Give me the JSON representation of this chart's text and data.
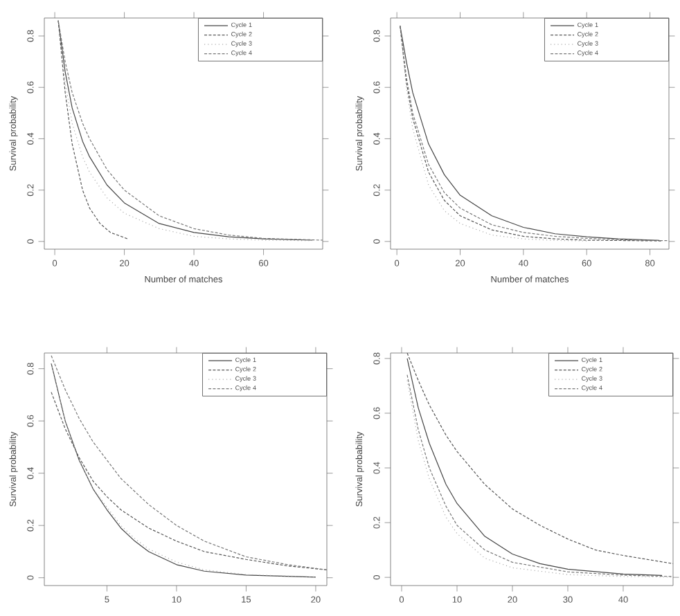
{
  "chart_data": [
    {
      "type": "line",
      "xlabel": "Number of matches",
      "ylabel": "Survival probability",
      "xlim": [
        -3,
        77
      ],
      "ylim": [
        -0.03,
        0.87
      ],
      "xticks": [
        0,
        20,
        40,
        60
      ],
      "yticks": [
        0,
        0.2,
        0.4,
        0.6,
        0.8
      ],
      "legend": "top right",
      "grid": false,
      "marker": "none",
      "series": [
        {
          "name": "Cycle 1",
          "color": "#444444",
          "line_style": "solid",
          "x": [
            1,
            3,
            5,
            8,
            10,
            15,
            20,
            30,
            40,
            50,
            60,
            74
          ],
          "values": [
            0.86,
            0.66,
            0.52,
            0.39,
            0.33,
            0.22,
            0.15,
            0.07,
            0.035,
            0.018,
            0.01,
            0.005
          ]
        },
        {
          "name": "Cycle 2",
          "color": "#555555",
          "line_style": "dashed",
          "x": [
            1,
            3,
            5,
            8,
            10,
            13,
            16,
            21
          ],
          "values": [
            0.86,
            0.58,
            0.38,
            0.2,
            0.13,
            0.07,
            0.035,
            0.01
          ]
        },
        {
          "name": "Cycle 3",
          "color": "#aaaaaa",
          "line_style": "dotted",
          "x": [
            1,
            3,
            5,
            8,
            10,
            15,
            20,
            30,
            40,
            50,
            60,
            74
          ],
          "values": [
            0.86,
            0.62,
            0.46,
            0.33,
            0.27,
            0.17,
            0.11,
            0.05,
            0.02,
            0.01,
            0.005,
            0.003
          ]
        },
        {
          "name": "Cycle 4",
          "color": "#777777",
          "line_style": "dashed",
          "x": [
            1,
            3,
            5,
            8,
            10,
            15,
            20,
            30,
            40,
            50,
            60,
            77
          ],
          "values": [
            0.86,
            0.7,
            0.58,
            0.46,
            0.4,
            0.28,
            0.2,
            0.1,
            0.05,
            0.025,
            0.012,
            0.005
          ]
        }
      ]
    },
    {
      "type": "line",
      "xlabel": "Number of matches",
      "ylabel": "Survival probability",
      "xlim": [
        -2,
        86
      ],
      "ylim": [
        -0.03,
        0.87
      ],
      "xticks": [
        0,
        20,
        40,
        60,
        80
      ],
      "yticks": [
        0,
        0.2,
        0.4,
        0.6,
        0.8
      ],
      "legend": "top right",
      "grid": false,
      "marker": "none",
      "series": [
        {
          "name": "Cycle 1",
          "color": "#444444",
          "line_style": "solid",
          "x": [
            1,
            3,
            5,
            10,
            15,
            20,
            30,
            40,
            50,
            60,
            70,
            83
          ],
          "values": [
            0.84,
            0.7,
            0.58,
            0.38,
            0.26,
            0.18,
            0.1,
            0.055,
            0.03,
            0.018,
            0.01,
            0.004
          ]
        },
        {
          "name": "Cycle 2",
          "color": "#555555",
          "line_style": "dashed",
          "x": [
            1,
            3,
            5,
            10,
            15,
            20,
            30,
            40,
            50,
            60,
            84
          ],
          "values": [
            0.84,
            0.62,
            0.48,
            0.27,
            0.16,
            0.1,
            0.045,
            0.02,
            0.01,
            0.005,
            0.002
          ]
        },
        {
          "name": "Cycle 3",
          "color": "#aaaaaa",
          "line_style": "dotted",
          "x": [
            1,
            3,
            5,
            10,
            15,
            20,
            30,
            40,
            50,
            60
          ],
          "values": [
            0.84,
            0.6,
            0.44,
            0.22,
            0.12,
            0.07,
            0.025,
            0.01,
            0.004,
            0.002
          ]
        },
        {
          "name": "Cycle 4",
          "color": "#777777",
          "line_style": "dashed",
          "x": [
            1,
            3,
            5,
            10,
            15,
            20,
            30,
            40,
            50,
            60,
            70,
            86
          ],
          "values": [
            0.84,
            0.64,
            0.5,
            0.3,
            0.19,
            0.13,
            0.065,
            0.035,
            0.02,
            0.012,
            0.007,
            0.003
          ]
        }
      ]
    },
    {
      "type": "line",
      "ylabel": "Survival probability",
      "xlim": [
        0.5,
        20.8
      ],
      "ylim": [
        -0.03,
        0.86
      ],
      "xticks": [
        5,
        10,
        15,
        20
      ],
      "yticks": [
        0,
        0.2,
        0.4,
        0.6,
        0.8
      ],
      "legend": "top right",
      "grid": false,
      "marker": "none",
      "series": [
        {
          "name": "Cycle 1",
          "color": "#444444",
          "line_style": "solid",
          "x": [
            1,
            2,
            3,
            4,
            5,
            6,
            7,
            8,
            10,
            12,
            15,
            20
          ],
          "values": [
            0.82,
            0.6,
            0.45,
            0.34,
            0.26,
            0.19,
            0.14,
            0.1,
            0.05,
            0.025,
            0.01,
            0.002
          ]
        },
        {
          "name": "Cycle 2",
          "color": "#555555",
          "line_style": "dashed",
          "x": [
            1,
            2,
            3,
            4,
            5,
            6,
            8,
            10,
            12,
            15,
            18,
            20.8
          ],
          "values": [
            0.71,
            0.57,
            0.46,
            0.37,
            0.31,
            0.26,
            0.19,
            0.14,
            0.1,
            0.07,
            0.045,
            0.03
          ]
        },
        {
          "name": "Cycle 3",
          "color": "#aaaaaa",
          "line_style": "dotted",
          "x": [
            1,
            2,
            3,
            4,
            5,
            6,
            7,
            8,
            10,
            12,
            15,
            20
          ],
          "values": [
            0.82,
            0.6,
            0.45,
            0.34,
            0.27,
            0.2,
            0.15,
            0.11,
            0.06,
            0.03,
            0.012,
            0.003
          ]
        },
        {
          "name": "Cycle 4",
          "color": "#777777",
          "line_style": "dashed",
          "x": [
            1,
            2,
            3,
            4,
            5,
            6,
            8,
            10,
            12,
            15,
            18,
            20.8
          ],
          "values": [
            0.85,
            0.72,
            0.61,
            0.52,
            0.45,
            0.38,
            0.28,
            0.2,
            0.14,
            0.08,
            0.05,
            0.03
          ]
        }
      ]
    },
    {
      "type": "line",
      "ylabel": "Survival probability",
      "xlim": [
        -2,
        49
      ],
      "ylim": [
        -0.03,
        0.82
      ],
      "xticks": [
        0,
        10,
        20,
        30,
        40
      ],
      "yticks": [
        0,
        0.2,
        0.4,
        0.6,
        0.8
      ],
      "legend": "top right",
      "grid": false,
      "marker": "none",
      "series": [
        {
          "name": "Cycle 1",
          "color": "#444444",
          "line_style": "solid",
          "x": [
            1,
            3,
            5,
            8,
            10,
            15,
            20,
            25,
            30,
            40,
            47
          ],
          "values": [
            0.8,
            0.62,
            0.49,
            0.34,
            0.27,
            0.15,
            0.085,
            0.05,
            0.03,
            0.012,
            0.007
          ]
        },
        {
          "name": "Cycle 2",
          "color": "#555555",
          "line_style": "dashed",
          "x": [
            1,
            3,
            5,
            8,
            10,
            15,
            20,
            25,
            30,
            35,
            40,
            49
          ],
          "values": [
            0.82,
            0.72,
            0.63,
            0.52,
            0.46,
            0.34,
            0.25,
            0.19,
            0.14,
            0.1,
            0.08,
            0.05
          ]
        },
        {
          "name": "Cycle 3",
          "color": "#aaaaaa",
          "line_style": "dotted",
          "x": [
            1,
            3,
            5,
            8,
            10,
            15,
            20,
            30,
            40,
            49
          ],
          "values": [
            0.72,
            0.5,
            0.36,
            0.22,
            0.16,
            0.07,
            0.035,
            0.01,
            0.003,
            0.001
          ]
        },
        {
          "name": "Cycle 4",
          "color": "#777777",
          "line_style": "dashed",
          "x": [
            1,
            3,
            5,
            8,
            10,
            15,
            20,
            30,
            40,
            49
          ],
          "values": [
            0.74,
            0.54,
            0.4,
            0.26,
            0.19,
            0.1,
            0.055,
            0.02,
            0.008,
            0.003
          ]
        }
      ]
    }
  ]
}
